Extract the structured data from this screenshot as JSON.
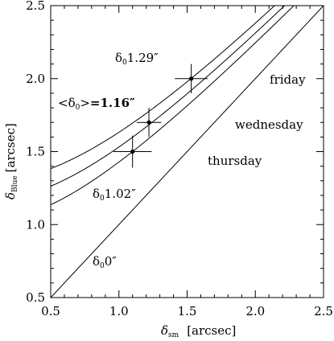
{
  "chart_data": {
    "type": "line",
    "xlabel_symbol": "δ",
    "xlabel_sub": "sm",
    "xlabel_unit": "[arcsec]",
    "ylabel_symbol": "δ",
    "ylabel_sub": "Blue",
    "ylabel_unit": "[arcsec]",
    "xlim": [
      0.5,
      2.5
    ],
    "ylim": [
      0.5,
      2.5
    ],
    "xticks": [
      "0.5",
      "1.0",
      "1.5",
      "2.0",
      "2.5"
    ],
    "yticks": [
      "0.5",
      "1.0",
      "1.5",
      "2.0",
      "2.5"
    ],
    "grid": false,
    "series": [
      {
        "delta0": 0.0
      },
      {
        "delta0": 1.02
      },
      {
        "delta0": 1.16
      },
      {
        "delta0": 1.29
      }
    ],
    "points": [
      {
        "x": 1.1,
        "y": 1.5,
        "xerr": 0.14,
        "yerr": 0.11
      },
      {
        "x": 1.22,
        "y": 1.7,
        "xerr": 0.09,
        "yerr": 0.1
      },
      {
        "x": 1.53,
        "y": 2.0,
        "xerr": 0.12,
        "yerr": 0.1
      }
    ],
    "annotations": {
      "d0": "0″",
      "d102": "1.02″",
      "d116_pre": "<",
      "d116_mid": ">",
      "d116_val": "=1.16″",
      "d129": "1.29″",
      "delta": "δ",
      "sub0": "0"
    },
    "regions": {
      "friday": "friday",
      "wednesday": "wednesday",
      "thursday": "thursday"
    }
  }
}
